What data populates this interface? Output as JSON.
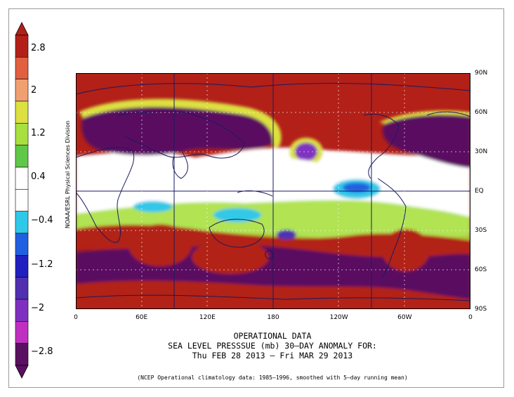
{
  "colorbar": {
    "labels": [
      "2.8",
      "2",
      "1.2",
      "0.4",
      "−0.4",
      "−1.2",
      "−2",
      "−2.8"
    ],
    "colors": [
      "#b22018",
      "#e06040",
      "#f0a070",
      "#dce040",
      "#a8e040",
      "#60c848",
      "#ffffff",
      "#ffffff",
      "#30c8e8",
      "#2060e0",
      "#2020c0",
      "#5030b0",
      "#8030c0",
      "#c030c0",
      "#5a1060"
    ]
  },
  "map": {
    "lat_labels": [
      "90N",
      "60N",
      "30N",
      "EQ",
      "30S",
      "60S",
      "90S"
    ],
    "lon_labels": [
      "0",
      "60E",
      "120E",
      "180",
      "120W",
      "60W",
      "0"
    ]
  },
  "credit": "NOAA/ESRL Physical Sciences Division",
  "title": {
    "line1": "OPERATIONAL DATA",
    "line2": "SEA LEVEL PRESSSUE (mb)   30–DAY ANOMALY FOR:",
    "line3": "Thu FEB 28 2013 – Fri MAR 29 2013",
    "note": "(NCEP Operational climatology data: 1985–1996, smoothed with 5–day running mean)"
  }
}
